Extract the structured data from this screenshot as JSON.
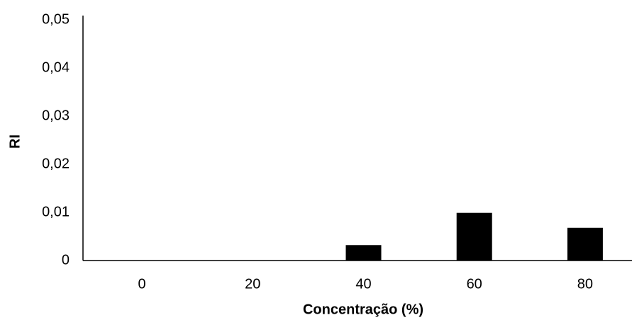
{
  "chart_data": {
    "type": "bar",
    "x_label": "Concentração  (%)",
    "y_label": "RI",
    "categories": [
      "0",
      "20",
      "40",
      "60",
      "80"
    ],
    "values": [
      0,
      0,
      0.0032,
      0.0099,
      0.0068
    ],
    "color": "#000000",
    "ylim": [
      0,
      0.05
    ],
    "yticks": [
      0,
      {
        "value": 0.01,
        "label": "0,01"
      },
      {
        "value": 0.02,
        "label": "0,02"
      },
      {
        "value": 0.03,
        "label": "0,03"
      },
      {
        "value": 0.04,
        "label": "0,04"
      },
      {
        "value": 0.05,
        "label": "0,05"
      }
    ],
    "grid": false
  }
}
